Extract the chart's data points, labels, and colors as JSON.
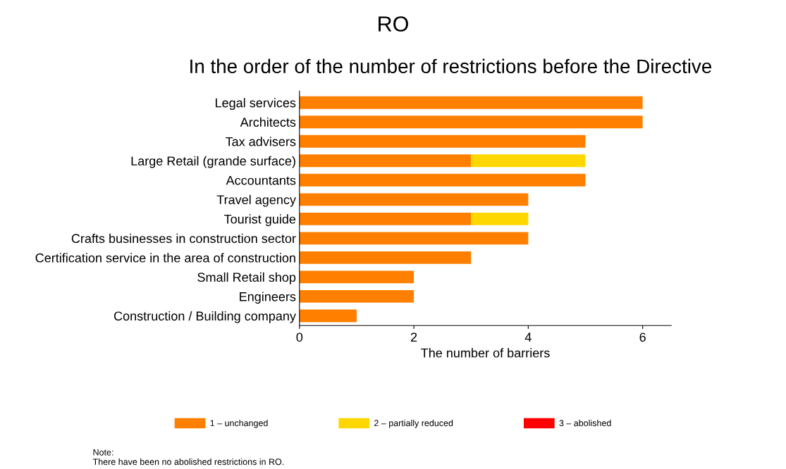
{
  "chart_data": {
    "type": "bar",
    "orientation": "horizontal",
    "stacked": true,
    "title": "RO",
    "subtitle": "In the order of the number of restrictions before the Directive",
    "xlabel": "The number of barriers",
    "categories": [
      "Legal services",
      "Architects",
      "Tax advisers",
      "Large Retail (grande surface)",
      "Accountants",
      "Travel agency",
      "Tourist guide",
      "Crafts businesses in construction sector",
      "Certification service in the area of construction",
      "Small Retail shop",
      "Engineers",
      "Construction / Building company"
    ],
    "series": [
      {
        "name": "1 – unchanged",
        "color": "#ff8000",
        "values": [
          6,
          6,
          5,
          3,
          5,
          4,
          3,
          4,
          3,
          2,
          2,
          1
        ]
      },
      {
        "name": "2 – partially reduced",
        "color": "#ffd700",
        "values": [
          0,
          0,
          0,
          2,
          0,
          0,
          1,
          0,
          0,
          0,
          0,
          0
        ]
      },
      {
        "name": "3 – abolished",
        "color": "#ff0000",
        "values": [
          0,
          0,
          0,
          0,
          0,
          0,
          0,
          0,
          0,
          0,
          0,
          0
        ]
      }
    ],
    "xlim": [
      0,
      6.5
    ],
    "xticks": [
      0,
      2,
      4,
      6
    ],
    "grid": false,
    "legend": "bottom",
    "annotations": [
      "Note:\nThere have been no abolished restrictions in RO."
    ]
  }
}
